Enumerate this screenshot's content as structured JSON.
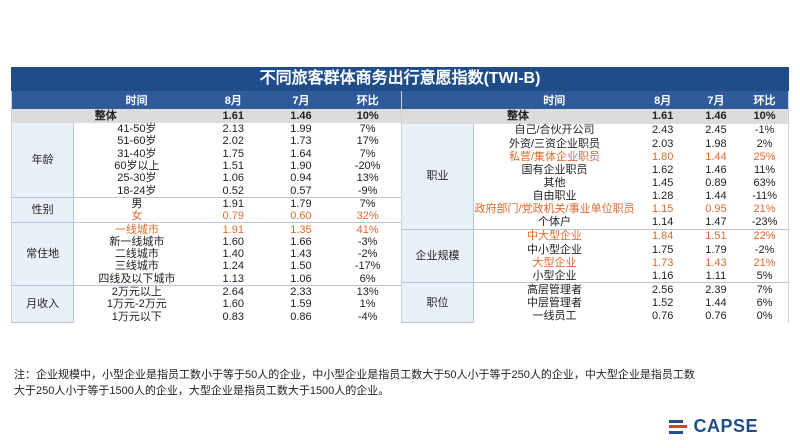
{
  "title": "不同旅客群体商务出行意愿指数(TWI-B)",
  "headers": {
    "left": [
      "",
      "时间",
      "8月",
      "7月",
      "环比"
    ],
    "right": [
      "",
      "时间",
      "8月",
      "7月",
      "环比"
    ]
  },
  "left_total": {
    "label": "整体",
    "aug": "1.61",
    "jul": "1.46",
    "mom": "10%"
  },
  "right_total": {
    "label": "整体",
    "aug": "1.61",
    "jul": "1.46",
    "mom": "10%"
  },
  "left_groups": [
    {
      "name": "年龄",
      "rows": [
        {
          "label": "41-50岁",
          "aug": "2.13",
          "jul": "1.99",
          "mom": "7%",
          "hl": false
        },
        {
          "label": "51-60岁",
          "aug": "2.02",
          "jul": "1.73",
          "mom": "17%",
          "hl": false
        },
        {
          "label": "31-40岁",
          "aug": "1.75",
          "jul": "1.64",
          "mom": "7%",
          "hl": false
        },
        {
          "label": "60岁以上",
          "aug": "1.51",
          "jul": "1.90",
          "mom": "-20%",
          "hl": false
        },
        {
          "label": "25-30岁",
          "aug": "1.06",
          "jul": "0.94",
          "mom": "13%",
          "hl": false
        },
        {
          "label": "18-24岁",
          "aug": "0.52",
          "jul": "0.57",
          "mom": "-9%",
          "hl": false
        }
      ]
    },
    {
      "name": "性别",
      "rows": [
        {
          "label": "男",
          "aug": "1.91",
          "jul": "1.79",
          "mom": "7%",
          "hl": false
        },
        {
          "label": "女",
          "aug": "0.79",
          "jul": "0.60",
          "mom": "32%",
          "hl": true
        }
      ]
    },
    {
      "name": "常住地",
      "rows": [
        {
          "label": "一线城市",
          "aug": "1.91",
          "jul": "1.35",
          "mom": "41%",
          "hl": true
        },
        {
          "label": "新一线城市",
          "aug": "1.60",
          "jul": "1.66",
          "mom": "-3%",
          "hl": false
        },
        {
          "label": "二线城市",
          "aug": "1.40",
          "jul": "1.43",
          "mom": "-2%",
          "hl": false
        },
        {
          "label": "三线城市",
          "aug": "1.24",
          "jul": "1.50",
          "mom": "-17%",
          "hl": false
        },
        {
          "label": "四线及以下城市",
          "aug": "1.13",
          "jul": "1.06",
          "mom": "6%",
          "hl": false
        }
      ]
    },
    {
      "name": "月收入",
      "rows": [
        {
          "label": "2万元以上",
          "aug": "2.64",
          "jul": "2.33",
          "mom": "13%",
          "hl": false
        },
        {
          "label": "1万元-2万元",
          "aug": "1.60",
          "jul": "1.59",
          "mom": "1%",
          "hl": false
        },
        {
          "label": "1万元以下",
          "aug": "0.83",
          "jul": "0.86",
          "mom": "-4%",
          "hl": false
        }
      ]
    }
  ],
  "right_groups": [
    {
      "name": "职业",
      "rows": [
        {
          "label": "自己/合伙开公司",
          "aug": "2.43",
          "jul": "2.45",
          "mom": "-1%",
          "hl": false
        },
        {
          "label": "外资/三资企业职员",
          "aug": "2.03",
          "jul": "1.98",
          "mom": "2%",
          "hl": false
        },
        {
          "label": "私营/集体企业职员",
          "aug": "1.80",
          "jul": "1.44",
          "mom": "25%",
          "hl": true
        },
        {
          "label": "国有企业职员",
          "aug": "1.62",
          "jul": "1.46",
          "mom": "11%",
          "hl": false
        },
        {
          "label": "其他",
          "aug": "1.45",
          "jul": "0.89",
          "mom": "63%",
          "hl": false
        },
        {
          "label": "自由职业",
          "aug": "1.28",
          "jul": "1.44",
          "mom": "-11%",
          "hl": false
        },
        {
          "label": "政府部门/党政机关/事业单位职员",
          "aug": "1.15",
          "jul": "0.95",
          "mom": "21%",
          "hl": true
        },
        {
          "label": "个体户",
          "aug": "1.14",
          "jul": "1.47",
          "mom": "-23%",
          "hl": false
        }
      ]
    },
    {
      "name": "企业规模",
      "rows": [
        {
          "label": "中大型企业",
          "aug": "1.84",
          "jul": "1.51",
          "mom": "22%",
          "hl": true
        },
        {
          "label": "中小型企业",
          "aug": "1.75",
          "jul": "1.79",
          "mom": "-2%",
          "hl": false
        },
        {
          "label": "大型企业",
          "aug": "1.73",
          "jul": "1.43",
          "mom": "21%",
          "hl": true
        },
        {
          "label": "小型企业",
          "aug": "1.16",
          "jul": "1.11",
          "mom": "5%",
          "hl": false
        }
      ]
    },
    {
      "name": "职位",
      "rows": [
        {
          "label": "高层管理者",
          "aug": "2.56",
          "jul": "2.39",
          "mom": "7%",
          "hl": false
        },
        {
          "label": "中层管理者",
          "aug": "1.52",
          "jul": "1.44",
          "mom": "6%",
          "hl": false
        },
        {
          "label": "一线员工",
          "aug": "0.76",
          "jul": "0.76",
          "mom": "0%",
          "hl": false
        }
      ]
    }
  ],
  "note_line1": "注：企业规模中，小型企业是指员工数小于等于50人的企业，中小型企业是指员工数大于50人小于等于250人的企业，中大型企业是指员工数",
  "note_line2": "大于250人小于等于1500人的企业，大型企业是指员工数大于1500人的企业。",
  "logo_text": "CAPSE",
  "colors": {
    "header": "#2f5b9a",
    "title": "#1f4d8a",
    "highlight": "#e06a2e"
  }
}
